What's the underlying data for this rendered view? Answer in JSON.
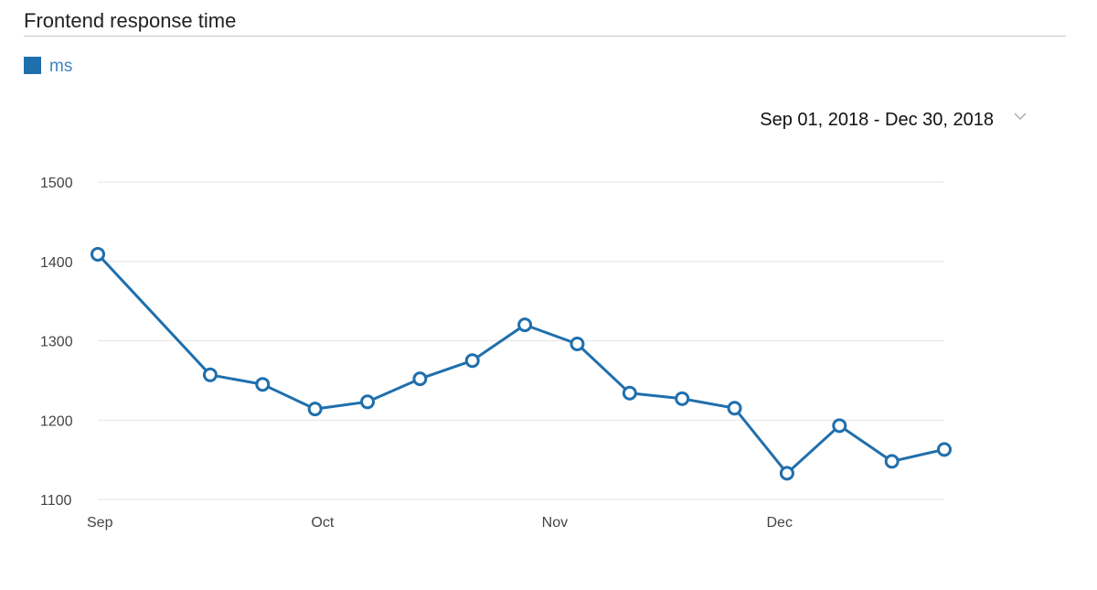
{
  "header": {
    "title": "Frontend response time"
  },
  "legend": {
    "label": "ms",
    "color": "#1f6fad"
  },
  "date_range": {
    "label": "Sep 01, 2018 - Dec 30, 2018",
    "icon": "chevron-down-icon"
  },
  "colors": {
    "series": "#1f6fad",
    "grid": "#e4e4e4",
    "title_rule": "#c8c8c8"
  },
  "chart_data": {
    "type": "line",
    "title": "Frontend response time",
    "xlabel": "",
    "ylabel": "",
    "series": [
      {
        "name": "ms",
        "points": [
          {
            "x": "2018-09-01",
            "y": 1409
          },
          {
            "x": "2018-09-16",
            "y": 1257
          },
          {
            "x": "2018-09-23",
            "y": 1245
          },
          {
            "x": "2018-09-30",
            "y": 1214
          },
          {
            "x": "2018-10-07",
            "y": 1223
          },
          {
            "x": "2018-10-14",
            "y": 1252
          },
          {
            "x": "2018-10-21",
            "y": 1275
          },
          {
            "x": "2018-10-28",
            "y": 1320
          },
          {
            "x": "2018-11-04",
            "y": 1296
          },
          {
            "x": "2018-11-11",
            "y": 1234
          },
          {
            "x": "2018-11-18",
            "y": 1227
          },
          {
            "x": "2018-11-25",
            "y": 1215
          },
          {
            "x": "2018-12-02",
            "y": 1133
          },
          {
            "x": "2018-12-09",
            "y": 1193
          },
          {
            "x": "2018-12-16",
            "y": 1148
          },
          {
            "x": "2018-12-23",
            "y": 1163
          }
        ]
      }
    ],
    "x_ticks": [
      {
        "label": "Sep",
        "x": "2018-09-01"
      },
      {
        "label": "Oct",
        "x": "2018-10-01"
      },
      {
        "label": "Nov",
        "x": "2018-11-01"
      },
      {
        "label": "Dec",
        "x": "2018-12-01"
      }
    ],
    "y_ticks": [
      1100,
      1200,
      1300,
      1400,
      1500
    ],
    "xlim": [
      "2018-09-01",
      "2018-12-23"
    ],
    "ylim": [
      1100,
      1500
    ],
    "grid": true,
    "legend_position": "top-left"
  }
}
